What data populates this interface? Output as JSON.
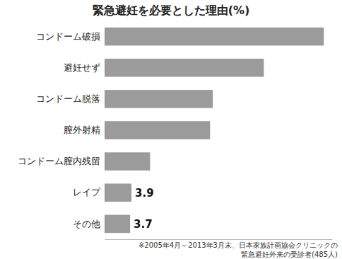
{
  "chart_data": {
    "type": "bar",
    "orientation": "horizontal",
    "title": "緊急避妊を必要とした理由(%)",
    "categories": [
      "コンドーム破損",
      "避妊せず",
      "コンドーム脱落",
      "膣外射精",
      "コンドーム膣内残留",
      "レイプ",
      "その他"
    ],
    "values": [
      31.8,
      23.1,
      15.7,
      15.3,
      6.6,
      3.9,
      3.7
    ],
    "color": "#9b9b9b",
    "xlim": [
      0,
      33
    ],
    "xticks": [],
    "data_labels": true,
    "tick_labels": "y",
    "annotations": [
      "※2005年4月～2013年3月末、日本家族計画協会クリニックの",
      "緊急避妊外来の受診者(485人)"
    ]
  }
}
